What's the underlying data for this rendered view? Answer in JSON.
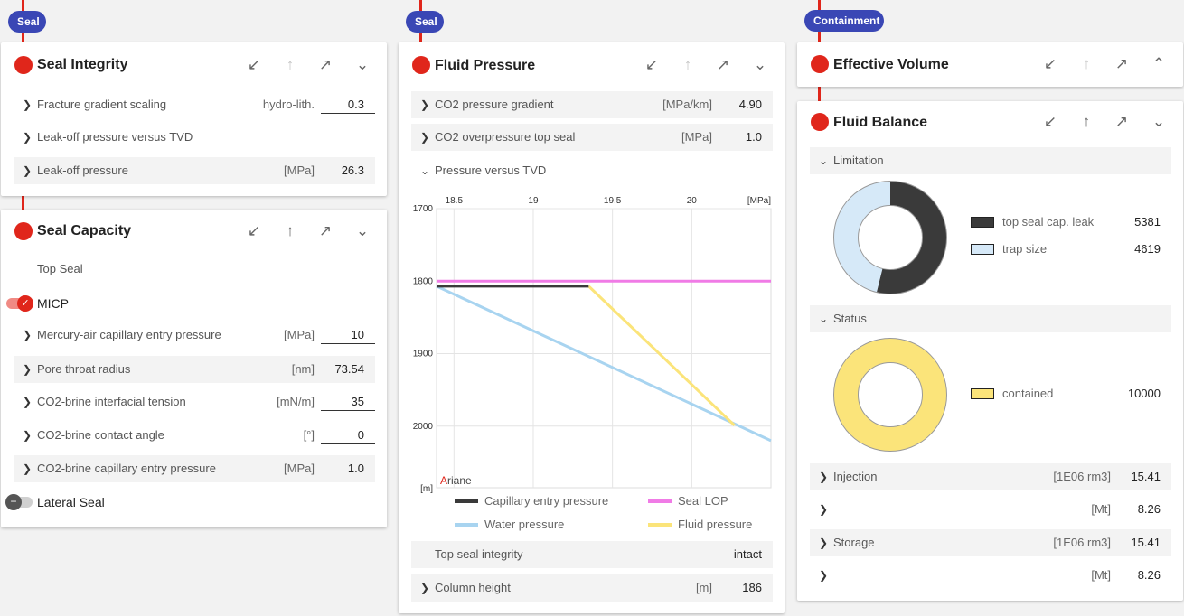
{
  "colors": {
    "accent": "#e0261b",
    "tag": "#3a47b5",
    "pink": "#f07be6",
    "blue": "#a8d4f0",
    "yellow": "#fbe47a",
    "dark": "#3a3a3a",
    "light": "#d6e9f8"
  },
  "tags": {
    "col1": "Seal",
    "col2": "Seal",
    "col3": "Containment"
  },
  "seal_integrity": {
    "title": "Seal Integrity",
    "rows": [
      {
        "label": "Fracture gradient scaling",
        "unit": "hydro-lith.",
        "value": "0.3"
      },
      {
        "label": "Leak-off pressure versus TVD"
      },
      {
        "label": "Leak-off pressure",
        "unit": "[MPa]",
        "value": "26.3"
      }
    ]
  },
  "seal_capacity": {
    "title": "Seal Capacity",
    "top_seal": "Top Seal",
    "micp": "MICP",
    "micp_on": true,
    "rows": [
      {
        "label": "Mercury-air capillary entry pressure",
        "unit": "[MPa]",
        "value": "10"
      },
      {
        "label": "Pore throat radius",
        "unit": "[nm]",
        "value": "73.54"
      },
      {
        "label": "CO2-brine interfacial tension",
        "unit": "[mN/m]",
        "value": "35"
      },
      {
        "label": "CO2-brine contact angle",
        "unit": "[°]",
        "value": "0"
      },
      {
        "label": "CO2-brine capillary entry pressure",
        "unit": "[MPa]",
        "value": "1.0"
      }
    ],
    "lateral": "Lateral Seal",
    "lateral_on": false
  },
  "fluid_pressure": {
    "title": "Fluid Pressure",
    "rows": [
      {
        "label": "CO2 pressure gradient",
        "unit": "[MPa/km]",
        "value": "4.90"
      },
      {
        "label": "CO2 overpressure top seal",
        "unit": "[MPa]",
        "value": "1.0"
      }
    ],
    "section": "Pressure versus TVD",
    "integrity_label": "Top seal integrity",
    "integrity_value": "intact",
    "column_label": "Column height",
    "column_unit": "[m]",
    "column_value": "186"
  },
  "chart_data": {
    "type": "line",
    "x_ticks": [
      "18.5",
      "19",
      "19.5",
      "20"
    ],
    "x_unit": "[MPa]",
    "y_ticks": [
      "1700",
      "1800",
      "1900",
      "2000"
    ],
    "y_unit": "[m]",
    "xlim": [
      18.39,
      20.5
    ],
    "ylim": [
      1700,
      2085
    ],
    "y_inverted": true,
    "watermark_first": "A",
    "watermark_rest": "riane",
    "series": [
      {
        "name": "Capillary entry pressure",
        "color": "#3a3a3a",
        "x": [
          18.39,
          19.35
        ],
        "y": [
          1807,
          1807
        ]
      },
      {
        "name": "Seal LOP",
        "color": "#f07be6",
        "x": [
          18.39,
          20.5
        ],
        "y": [
          1800,
          1800
        ]
      },
      {
        "name": "Water pressure",
        "color": "#a8d4f0",
        "x": [
          18.39,
          20.5
        ],
        "y": [
          1807,
          2020
        ]
      },
      {
        "name": "Fluid pressure",
        "color": "#fbe47a",
        "x": [
          19.35,
          20.27
        ],
        "y": [
          1807,
          1999
        ]
      }
    ]
  },
  "effective_volume": {
    "title": "Effective Volume"
  },
  "fluid_balance": {
    "title": "Fluid Balance",
    "limitation": "Limitation",
    "limit_items": [
      {
        "label": "top seal cap. leak",
        "value": "5381",
        "color": "#3a3a3a"
      },
      {
        "label": "trap size",
        "value": "4619",
        "color": "#d6e9f8"
      }
    ],
    "status": "Status",
    "status_items": [
      {
        "label": "contained",
        "value": "10000",
        "color": "#fbe47a"
      }
    ],
    "rows": [
      {
        "label": "Injection",
        "unit": "[1E06 rm3]",
        "value": "15.41"
      },
      {
        "label": "",
        "unit": "[Mt]",
        "value": "8.26"
      },
      {
        "label": "Storage",
        "unit": "[1E06 rm3]",
        "value": "15.41"
      },
      {
        "label": "",
        "unit": "[Mt]",
        "value": "8.26"
      }
    ]
  }
}
